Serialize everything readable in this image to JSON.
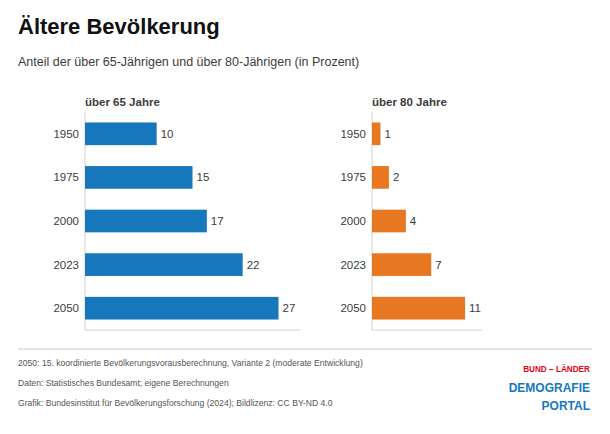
{
  "chart_data": [
    {
      "type": "bar",
      "orientation": "horizontal",
      "title": "Ältere Bevölkerung",
      "subtitle": "Anteil der über 65-Jährigen und über 80-Jährigen (in Prozent)",
      "categories": [
        "1950",
        "1975",
        "2000",
        "2023",
        "2050"
      ],
      "series": [
        {
          "name": "über 65 Jahre",
          "color": "#1777BC",
          "values": [
            10,
            15,
            17,
            22,
            27
          ]
        }
      ],
      "xlim": [
        0,
        30
      ],
      "data_labels": true,
      "tick_labels": "y",
      "annotations": [
        "2050: 15. koordinierte Bevölkerungsvorausberechnung, Variante 2 (moderate Entwicklung)",
        "Daten: Statistisches Bundesamt; eigene Berechnungen",
        "Grafik: Bundesinstitut für Bevölkerungsforschung (2024); Bildlizenz: CC BY-ND 4.0",
        "BUND – LÄNDER",
        "DEMOGRAFIE",
        "PORTAL"
      ]
    },
    {
      "type": "bar",
      "orientation": "horizontal",
      "categories": [
        "1950",
        "1975",
        "2000",
        "2023",
        "2050"
      ],
      "series": [
        {
          "name": "über 80 Jahre",
          "color": "#E87722",
          "values": [
            1,
            2,
            4,
            7,
            11
          ]
        }
      ],
      "xlim": [
        0,
        13
      ],
      "data_labels": true,
      "tick_labels": "y"
    }
  ]
}
